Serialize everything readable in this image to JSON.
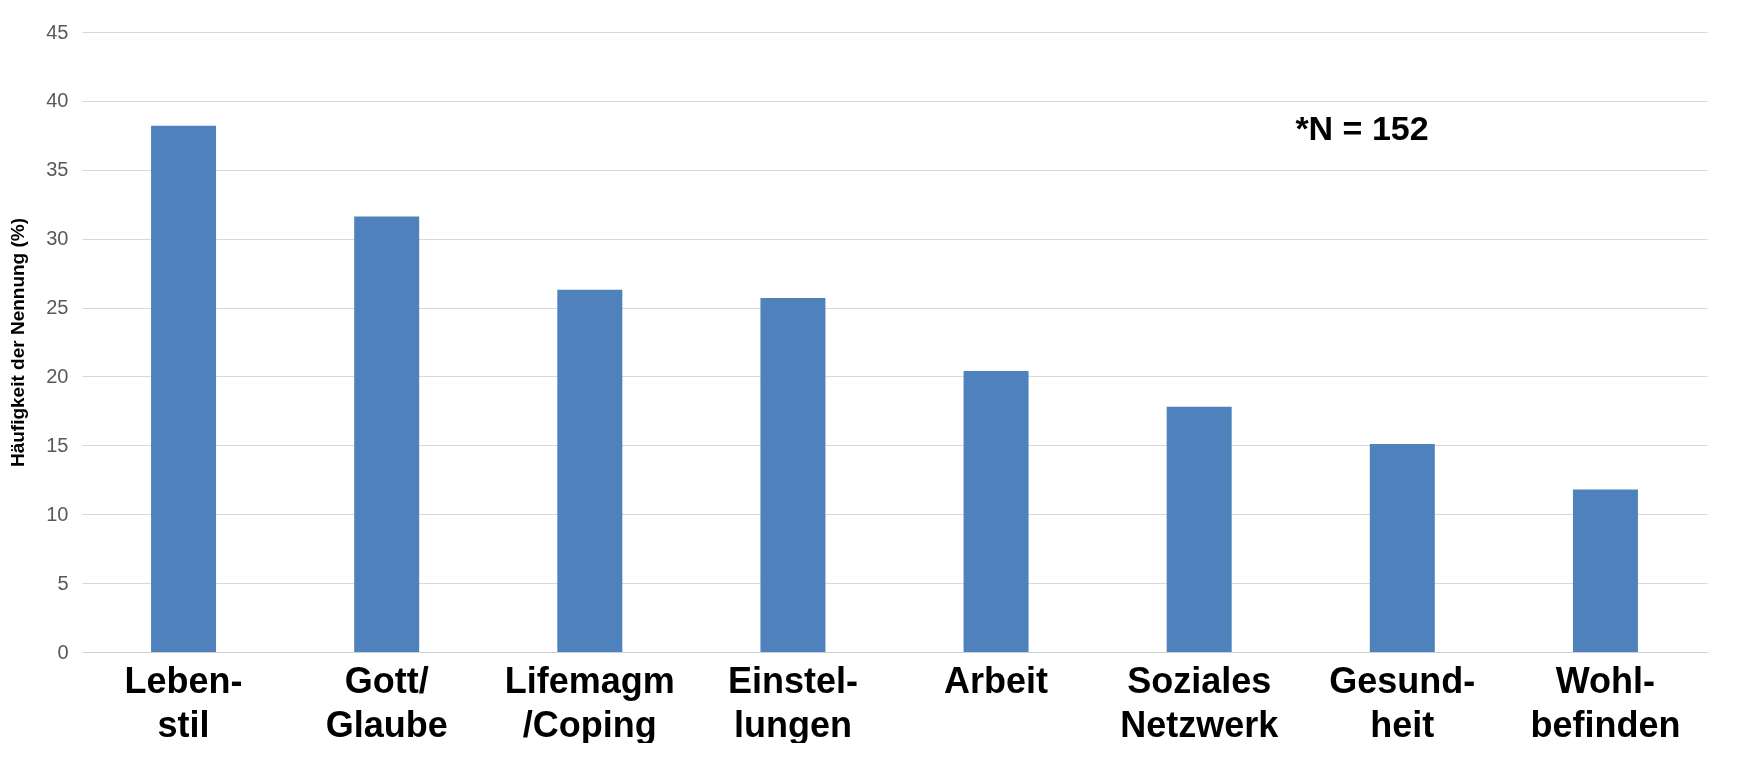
{
  "chart_data": {
    "type": "bar",
    "ylabel": "Häufigkeit der Nennung (%)",
    "categories": [
      "Leben-\nstil",
      "Gott/\nGlaube",
      "Lifemagm\n/Coping",
      "Einstel-\nlungen",
      "Arbeit",
      "Soziales\nNetzwerk",
      "Gesund-\nheit",
      "Wohl-\nbefinden"
    ],
    "values": [
      38.2,
      31.6,
      26.3,
      25.7,
      20.4,
      17.8,
      15.1,
      11.8
    ],
    "color": "#4f81bd",
    "ylim": [
      0,
      45
    ],
    "yticks": [
      0,
      5,
      10,
      15,
      20,
      25,
      30,
      35,
      40,
      45
    ],
    "grid": "y",
    "annotations": [
      "*N = 152"
    ]
  }
}
